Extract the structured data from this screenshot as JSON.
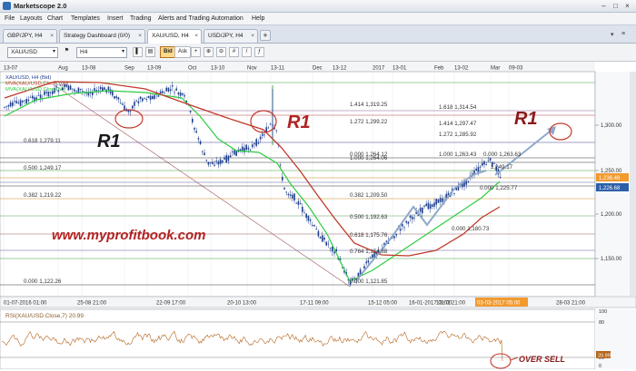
{
  "app": {
    "title": "Marketscope 2.0"
  },
  "menu": [
    "File",
    "Layouts",
    "Chart",
    "Templates",
    "Insert",
    "Trading",
    "Alerts and Trading Automation",
    "Help"
  ],
  "tabs": [
    {
      "label": "GBP/JPY, H4",
      "active": false
    },
    {
      "label": "Strategy Dashboard (0/0)",
      "active": false
    },
    {
      "label": "XAU/USD, H4",
      "active": true
    },
    {
      "label": "USD/JPY, H4",
      "active": false
    }
  ],
  "toolbar": {
    "symbol": "XAU/USD",
    "timeframe": "H4",
    "bid_label": "Bid",
    "ask_label": "Ask"
  },
  "chart": {
    "top_dates": [
      "13-07",
      "Aug",
      "13-08",
      "Sep",
      "13-09",
      "Oct",
      "13-10",
      "Nov",
      "13-11",
      "Dec",
      "13-12",
      "2017",
      "13-01",
      "Feb",
      "13-02",
      "Mar",
      "09-03"
    ],
    "bottom_dates": [
      "01-07-2016 01:00",
      "25-08 21:00",
      "22-09 17:00",
      "20-10 13:00",
      "17-11 09:00",
      "15-12 05:00",
      "16-01-2017 01:00",
      "13-02 21:00",
      "03-03-2017 05:00",
      "28-03 21:00"
    ],
    "y_ticks": [
      "1,300.00",
      "1,250.00",
      "1,200.00",
      "1,150.00"
    ],
    "price_tags": [
      {
        "text": "1,238.48",
        "color": "#f29a2e"
      },
      {
        "text": "1,226.68",
        "color": "#2d5fa8"
      }
    ],
    "legend": [
      "XAU/USD, H4 (Bid)",
      "MVA(XAU/USD.Close,100)",
      "MVA(XAU/USD.Close,50)"
    ],
    "fib_left": [
      "0.618  1,279.11",
      "0.500  1,249.17",
      "0.382  1,219.22",
      "0.000  1,122.26"
    ],
    "fib_mid": [
      "1.414  1,319.25",
      "1.272  1,299.22",
      "0.000  1,264.12",
      "1.000  1,264.06",
      "0.382  1,209.50",
      "0.500  1,192.63",
      "0.618  1,175.76",
      "0.764  1,154.88",
      "0.000  1,121.85"
    ],
    "fib_right": [
      "1.618  1,314.54",
      "1.414  1,297.47",
      "1.272  1,285.92",
      "1.000  1,263.43",
      "0.000  1,263.63",
      "1,249.17",
      "0.000  1,225.77",
      "0.000  1,180.73"
    ],
    "annotations": {
      "r1_left": "R1",
      "r1_mid": "R1",
      "r1_right": "R1",
      "watermark": "www.myprofitbook.com",
      "oversell": "OVER SELL"
    },
    "rsi": {
      "label": "RSI(XAU/USD.Close,7) 20.99",
      "ticks": [
        "100",
        "80",
        "20",
        "0"
      ],
      "last_value": "20.99"
    }
  }
}
